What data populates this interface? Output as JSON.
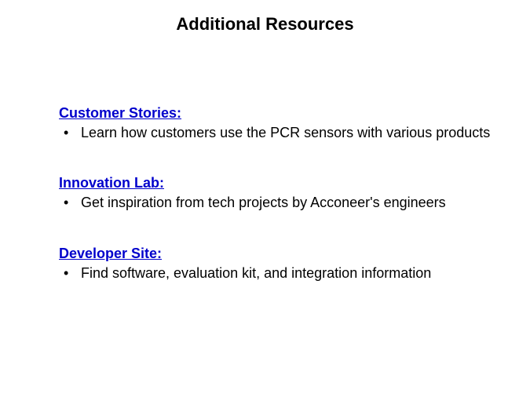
{
  "title": "Additional Resources",
  "sections": [
    {
      "heading": "Customer Stories:",
      "bullet": "Learn how customers use the PCR sensors with various products"
    },
    {
      "heading": "Innovation Lab:",
      "bullet": "Get inspiration from tech projects by Acconeer's engineers"
    },
    {
      "heading": "Developer Site:",
      "bullet": "Find software, evaluation kit, and integration information"
    }
  ],
  "colors": {
    "title_color": "#000000",
    "heading_color": "#0000cc",
    "text_color": "#000000",
    "background_color": "#ffffff"
  },
  "typography": {
    "title_fontsize": 22,
    "title_weight": "bold",
    "heading_fontsize": 18,
    "heading_weight": "bold",
    "body_fontsize": 18,
    "font_family": "Arial"
  }
}
